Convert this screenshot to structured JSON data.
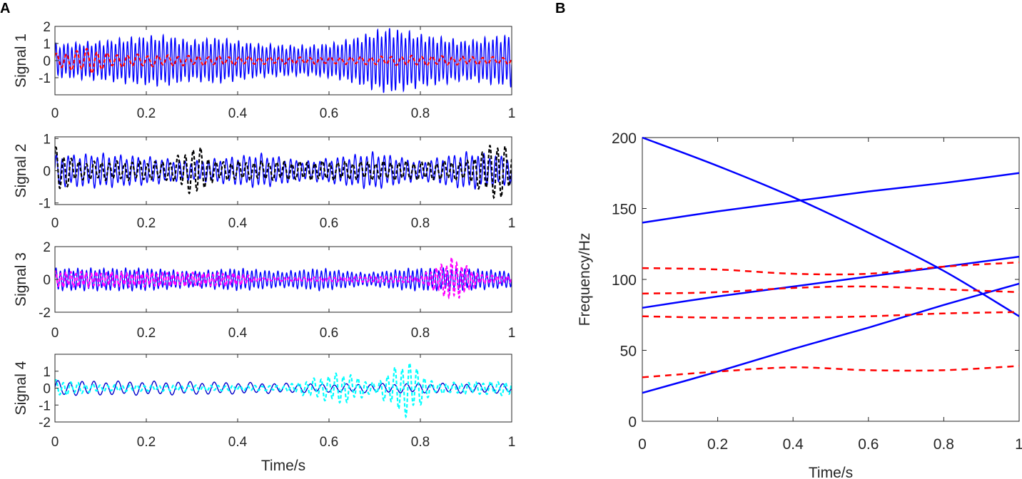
{
  "chart_data": [
    {
      "panel": "A",
      "type": "line",
      "xlabel": "Time/s",
      "xlim": [
        0,
        1
      ],
      "xticks": [
        "0",
        "0.2",
        "0.4",
        "0.6",
        "0.8",
        "1"
      ],
      "subplots": [
        {
          "ylabel": "Signal 1",
          "ylim": [
            -2,
            2
          ],
          "yticks": [
            {
              "v": 2,
              "t": "2"
            },
            {
              "v": 1,
              "t": "1"
            },
            {
              "v": 0,
              "t": "0"
            },
            {
              "v": -1,
              "t": "-1"
            }
          ],
          "series": [
            {
              "name": "signal-1-original",
              "color": "#0000ff",
              "dash": false,
              "freq": 115,
              "env": [
                [
                  0,
                  1.0
                ],
                [
                  0.1,
                  1.2
                ],
                [
                  0.2,
                  1.5
                ],
                [
                  0.25,
                  1.5
                ],
                [
                  0.3,
                  1.2
                ],
                [
                  0.35,
                  1.4
                ],
                [
                  0.45,
                  1.0
                ],
                [
                  0.55,
                  0.9
                ],
                [
                  0.62,
                  1.1
                ],
                [
                  0.68,
                  1.6
                ],
                [
                  0.73,
                  2.0
                ],
                [
                  0.8,
                  1.6
                ],
                [
                  0.9,
                  1.2
                ],
                [
                  1,
                  1.6
                ]
              ]
            },
            {
              "name": "signal-1-residual",
              "color": "#ff0000",
              "dash": true,
              "freq": 45,
              "env": [
                [
                  0,
                  0.4
                ],
                [
                  0.08,
                  0.8
                ],
                [
                  0.12,
                  0.4
                ],
                [
                  0.3,
                  0.3
                ],
                [
                  0.5,
                  0.2
                ],
                [
                  0.6,
                  0.2
                ],
                [
                  0.8,
                  0.3
                ],
                [
                  1,
                  0.2
                ]
              ]
            }
          ]
        },
        {
          "ylabel": "Signal 2",
          "ylim": [
            -1.05,
            1.05
          ],
          "yticks": [
            {
              "v": 1,
              "t": "1"
            },
            {
              "v": 0,
              "t": "0"
            },
            {
              "v": -1,
              "t": "-1"
            }
          ],
          "series": [
            {
              "name": "signal-2-original",
              "color": "#0000ff",
              "dash": false,
              "freq": 78,
              "env": [
                [
                  0,
                  0.5
                ],
                [
                  0.1,
                  0.55
                ],
                [
                  0.2,
                  0.45
                ],
                [
                  0.3,
                  0.3
                ],
                [
                  0.45,
                  0.55
                ],
                [
                  0.55,
                  0.3
                ],
                [
                  0.7,
                  0.6
                ],
                [
                  0.8,
                  0.3
                ],
                [
                  0.9,
                  0.6
                ],
                [
                  1,
                  0.45
                ]
              ]
            },
            {
              "name": "signal-2-residual",
              "color": "#000000",
              "dash": true,
              "freq": 60,
              "env": [
                [
                  0,
                  0.75
                ],
                [
                  0.05,
                  0.3
                ],
                [
                  0.25,
                  0.3
                ],
                [
                  0.31,
                  0.85
                ],
                [
                  0.35,
                  0.3
                ],
                [
                  0.9,
                  0.3
                ],
                [
                  0.97,
                  1.0
                ],
                [
                  1,
                  0.6
                ]
              ]
            }
          ]
        },
        {
          "ylabel": "Signal 3",
          "ylim": [
            -2,
            2
          ],
          "yticks": [
            {
              "v": 2,
              "t": "2"
            },
            {
              "v": 0,
              "t": "0"
            },
            {
              "v": -2,
              "t": "-2"
            }
          ],
          "series": [
            {
              "name": "signal-3-original",
              "color": "#0000ff",
              "dash": false,
              "freq": 105,
              "env": [
                [
                  0,
                  0.7
                ],
                [
                  0.2,
                  0.7
                ],
                [
                  0.3,
                  0.5
                ],
                [
                  0.4,
                  0.7
                ],
                [
                  0.5,
                  0.5
                ],
                [
                  0.58,
                  0.7
                ],
                [
                  0.68,
                  0.4
                ],
                [
                  0.78,
                  0.7
                ],
                [
                  0.9,
                  0.7
                ],
                [
                  1,
                  0.5
                ]
              ]
            },
            {
              "name": "signal-3-residual",
              "color": "#ff00ff",
              "dash": true,
              "freq": 90,
              "env": [
                [
                  0,
                  0.5
                ],
                [
                  0.4,
                  0.4
                ],
                [
                  0.45,
                  0.1
                ],
                [
                  0.8,
                  0.2
                ],
                [
                  0.87,
                  1.4
                ],
                [
                  0.93,
                  0.3
                ],
                [
                  1,
                  0.2
                ]
              ]
            }
          ]
        },
        {
          "ylabel": "Signal 4",
          "ylim": [
            -2,
            2
          ],
          "yticks": [
            {
              "v": 1,
              "t": "1"
            },
            {
              "v": 0,
              "t": "0"
            },
            {
              "v": -1,
              "t": "-1"
            },
            {
              "v": -2,
              "t": "-2"
            }
          ],
          "series": [
            {
              "name": "signal-4-original",
              "color": "#0000cc",
              "dash": false,
              "freq": 38,
              "env": [
                [
                  0,
                  0.45
                ],
                [
                  0.3,
                  0.4
                ],
                [
                  0.5,
                  0.3
                ],
                [
                  0.6,
                  0.25
                ],
                [
                  0.8,
                  0.3
                ],
                [
                  1,
                  0.3
                ]
              ]
            },
            {
              "name": "signal-4-residual",
              "color": "#00ffff",
              "dash": true,
              "freq": 62,
              "env": [
                [
                  0,
                  0.5
                ],
                [
                  0.1,
                  0.2
                ],
                [
                  0.5,
                  0.15
                ],
                [
                  0.63,
                  1.0
                ],
                [
                  0.7,
                  0.3
                ],
                [
                  0.77,
                  1.8
                ],
                [
                  0.83,
                  0.3
                ],
                [
                  1,
                  0.45
                ]
              ]
            }
          ]
        }
      ]
    },
    {
      "panel": "B",
      "type": "line",
      "xlabel": "Time/s",
      "ylabel": "Frequency/Hz",
      "xlim": [
        0,
        1
      ],
      "ylim": [
        0,
        200
      ],
      "xticks": [
        "0",
        "0.2",
        "0.4",
        "0.6",
        "0.8",
        "1"
      ],
      "yticks": [
        "0",
        "50",
        "100",
        "150",
        "200"
      ],
      "x": [
        0,
        0.2,
        0.4,
        0.6,
        0.8,
        1
      ],
      "series": [
        {
          "name": "true-if-1",
          "color": "#0000ff",
          "dash": false,
          "values": [
            200,
            180,
            158,
            133,
            106,
            74
          ]
        },
        {
          "name": "true-if-2",
          "color": "#0000ff",
          "dash": false,
          "values": [
            140,
            148,
            155,
            162,
            168,
            175
          ]
        },
        {
          "name": "true-if-3",
          "color": "#0000ff",
          "dash": false,
          "values": [
            80,
            88,
            95,
            102,
            109,
            116
          ]
        },
        {
          "name": "true-if-4",
          "color": "#0000ff",
          "dash": false,
          "values": [
            20,
            35,
            51,
            66,
            82,
            97
          ]
        },
        {
          "name": "estimated-if-1",
          "color": "#ff0000",
          "dash": true,
          "values": [
            108,
            107,
            104,
            104,
            109,
            112
          ]
        },
        {
          "name": "estimated-if-2",
          "color": "#ff0000",
          "dash": true,
          "values": [
            90,
            91,
            94,
            95,
            93,
            91
          ]
        },
        {
          "name": "estimated-if-3",
          "color": "#ff0000",
          "dash": true,
          "values": [
            74,
            73,
            73,
            74,
            76,
            77
          ]
        },
        {
          "name": "estimated-if-4",
          "color": "#ff0000",
          "dash": true,
          "values": [
            31,
            35,
            38,
            36,
            36,
            39
          ]
        }
      ]
    }
  ]
}
